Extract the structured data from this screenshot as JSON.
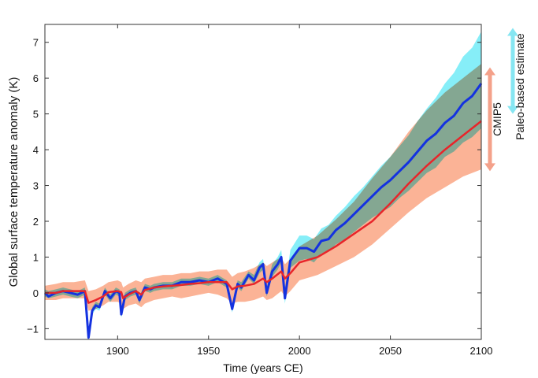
{
  "chart_data": {
    "type": "line",
    "title": "",
    "xlabel": "Time (years CE)",
    "ylabel": "Global surface temperature anomaly (K)",
    "xlim": [
      1860,
      2100
    ],
    "ylim": [
      -1.3,
      7.5
    ],
    "xticks": [
      1900,
      1950,
      2000,
      2050,
      2100
    ],
    "yticks": [
      -1,
      0,
      1,
      2,
      3,
      4,
      5,
      6,
      7
    ],
    "grid": false,
    "colors": {
      "paleo_line": "#1432e0",
      "paleo_band": "#86eef8",
      "cmip_line": "#e8252a",
      "cmip_band": "#fbb396"
    },
    "series": [
      {
        "name": "Paleo-based estimate",
        "x": [
          1860,
          1862,
          1866,
          1870,
          1874,
          1878,
          1882,
          1884,
          1886,
          1888,
          1890,
          1893,
          1896,
          1899,
          1901,
          1902,
          1904,
          1907,
          1910,
          1912,
          1915,
          1918,
          1920,
          1925,
          1930,
          1935,
          1940,
          1945,
          1950,
          1955,
          1960,
          1963,
          1966,
          1968,
          1972,
          1975,
          1978,
          1980,
          1982,
          1985,
          1988,
          1990,
          1992,
          1995,
          2000,
          2004,
          2008,
          2012,
          2016,
          2020,
          2025,
          2030,
          2035,
          2040,
          2045,
          2050,
          2055,
          2060,
          2065,
          2070,
          2075,
          2080,
          2085,
          2090,
          2095,
          2100
        ],
        "y": [
          0,
          -0.1,
          0,
          0.05,
          0,
          -0.05,
          0.05,
          -1.25,
          -0.5,
          -0.35,
          -0.4,
          0.05,
          -0.15,
          0.05,
          0,
          -0.6,
          -0.1,
          0,
          0.05,
          -0.2,
          0.15,
          0.1,
          0.15,
          0.2,
          0.2,
          0.3,
          0.3,
          0.35,
          0.3,
          0.4,
          0.25,
          -0.45,
          0.25,
          0.15,
          0.5,
          0.35,
          0.7,
          0.8,
          0,
          0.6,
          0.8,
          1.0,
          -0.15,
          0.9,
          1.25,
          1.25,
          1.15,
          1.45,
          1.5,
          1.75,
          1.95,
          2.2,
          2.45,
          2.7,
          2.95,
          3.15,
          3.4,
          3.65,
          3.95,
          4.25,
          4.45,
          4.75,
          4.95,
          5.3,
          5.5,
          5.85
        ],
        "band_upper": [
          0.1,
          0.05,
          0.1,
          0.15,
          0.1,
          0.05,
          0.15,
          -1.1,
          -0.4,
          -0.25,
          -0.3,
          0.15,
          -0.05,
          0.15,
          0.1,
          -0.5,
          0,
          0.1,
          0.15,
          -0.1,
          0.25,
          0.2,
          0.25,
          0.3,
          0.3,
          0.4,
          0.4,
          0.45,
          0.4,
          0.5,
          0.35,
          -0.35,
          0.35,
          0.3,
          0.6,
          0.5,
          0.85,
          0.95,
          0.15,
          0.8,
          1.0,
          1.2,
          0.1,
          1.2,
          1.6,
          1.6,
          1.5,
          1.8,
          1.9,
          2.15,
          2.4,
          2.7,
          2.95,
          3.25,
          3.55,
          3.8,
          4.1,
          4.4,
          4.8,
          5.15,
          5.45,
          5.85,
          6.15,
          6.6,
          6.85,
          7.3
        ],
        "band_lower": [
          -0.1,
          -0.15,
          -0.1,
          -0.05,
          -0.1,
          -0.15,
          -0.05,
          -1.3,
          -0.6,
          -0.45,
          -0.5,
          -0.05,
          -0.25,
          -0.05,
          -0.1,
          -0.7,
          -0.2,
          -0.1,
          -0.05,
          -0.3,
          0.05,
          0,
          0.05,
          0.1,
          0.1,
          0.2,
          0.2,
          0.25,
          0.2,
          0.3,
          0.15,
          -0.55,
          0.15,
          0.05,
          0.4,
          0.25,
          0.55,
          0.65,
          -0.1,
          0.45,
          0.65,
          0.85,
          -0.3,
          0.7,
          0.9,
          0.95,
          0.85,
          1.1,
          1.15,
          1.35,
          1.5,
          1.7,
          1.9,
          2.1,
          2.25,
          2.4,
          2.65,
          2.85,
          3.1,
          3.35,
          3.5,
          3.8,
          3.95,
          4.2,
          4.35,
          4.6
        ]
      },
      {
        "name": "CMIP5",
        "x": [
          1860,
          1866,
          1870,
          1876,
          1882,
          1884,
          1888,
          1892,
          1895,
          1900,
          1902,
          1903,
          1906,
          1910,
          1913,
          1915,
          1920,
          1925,
          1930,
          1935,
          1940,
          1945,
          1950,
          1955,
          1960,
          1963,
          1966,
          1970,
          1975,
          1980,
          1982,
          1985,
          1990,
          1992,
          1995,
          2000,
          2010,
          2020,
          2030,
          2040,
          2050,
          2060,
          2070,
          2080,
          2090,
          2100
        ],
        "y": [
          0,
          0,
          0.05,
          0.05,
          0.05,
          -0.28,
          -0.2,
          -0.1,
          0.02,
          0.05,
          0.02,
          -0.15,
          -0.05,
          0.05,
          -0.05,
          0.08,
          0.15,
          0.18,
          0.2,
          0.22,
          0.25,
          0.27,
          0.3,
          0.3,
          0.3,
          0.1,
          0.18,
          0.2,
          0.25,
          0.4,
          0.3,
          0.4,
          0.6,
          0.4,
          0.55,
          0.85,
          1.0,
          1.3,
          1.65,
          2.0,
          2.5,
          3.05,
          3.55,
          4.0,
          4.4,
          4.8
        ],
        "band_upper": [
          0.2,
          0.25,
          0.3,
          0.3,
          0.35,
          0.05,
          0.1,
          0.2,
          0.3,
          0.35,
          0.3,
          0.15,
          0.25,
          0.35,
          0.3,
          0.4,
          0.45,
          0.5,
          0.5,
          0.55,
          0.55,
          0.6,
          0.6,
          0.65,
          0.65,
          0.45,
          0.55,
          0.6,
          0.7,
          0.85,
          0.75,
          0.85,
          1.0,
          0.8,
          0.95,
          1.3,
          1.6,
          2.05,
          2.55,
          3.2,
          3.8,
          4.5,
          5.1,
          5.6,
          6.0,
          6.4
        ],
        "band_lower": [
          -0.2,
          -0.2,
          -0.15,
          -0.15,
          -0.15,
          -0.5,
          -0.45,
          -0.35,
          -0.25,
          -0.25,
          -0.3,
          -0.45,
          -0.35,
          -0.3,
          -0.4,
          -0.3,
          -0.2,
          -0.15,
          -0.1,
          -0.15,
          -0.1,
          -0.05,
          0,
          -0.05,
          -0.15,
          -0.3,
          -0.25,
          -0.25,
          -0.2,
          -0.1,
          -0.2,
          -0.15,
          0.05,
          -0.1,
          0.05,
          0.35,
          0.5,
          0.75,
          1.0,
          1.35,
          1.8,
          2.25,
          2.65,
          2.95,
          3.25,
          3.45
        ]
      }
    ],
    "annotations": [
      {
        "label": "CMIP5",
        "range": [
          3.4,
          6.3
        ],
        "color": "#f4a18a"
      },
      {
        "label": "Paleo-based estimate",
        "range": [
          5.0,
          7.4
        ],
        "color": "#86e6f2"
      }
    ]
  }
}
